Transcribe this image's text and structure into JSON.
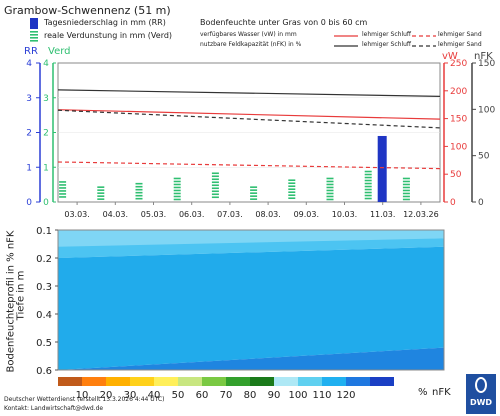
{
  "title": "Grambow-Schwennenz  (51 m)",
  "legend": {
    "precip": "Tagesniederschlag in mm (RR)",
    "evap": "reale Verdunstung in mm (Verd)",
    "soil_title": "Bodenfeuchte unter Gras von 0 bis 60 cm",
    "vw_label": "verfügbares Wasser (vW) in mm",
    "nfk_label": "nutzbare Feldkapazität (nFK) in %",
    "schluff": "lehmiger Schluff",
    "sand": "lehmiger Sand"
  },
  "axes": {
    "rr": "RR",
    "verd": "Verd",
    "vw": "vW",
    "nfk": "nFK",
    "left_ticks": [
      "0",
      "1",
      "2",
      "3",
      "4"
    ],
    "vw_ticks": [
      "0",
      "50",
      "100",
      "150",
      "200",
      "250"
    ],
    "nfk_ticks": [
      "0",
      "50",
      "100",
      "150"
    ],
    "depth_ticks": [
      "0.1",
      "0.2",
      "0.3",
      "0.4",
      "0.5",
      "0.6"
    ],
    "profile_ylabel_1": "Bodenfeuchteprofil in % nFK",
    "profile_ylabel_2": "Tiefe in m"
  },
  "colors": {
    "precip": "#1f35c4",
    "evap": "#2fbf71",
    "vw_line": "#e83b3b",
    "nfk_line": "#333333",
    "rr_axis": "#2b3fd6",
    "verd_axis": "#2fbf71",
    "vw_axis": "#e83b3b",
    "nfk_axis": "#444444"
  },
  "scale": {
    "labels": [
      "10",
      "20",
      "30",
      "40",
      "50",
      "60",
      "70",
      "80",
      "90",
      "100",
      "110",
      "120"
    ],
    "unit": "%",
    "nfk": "nFK",
    "colors": [
      "#c05a1a",
      "#ff7f0e",
      "#ffb000",
      "#ffd11a",
      "#ffef5a",
      "#c8e680",
      "#7ac943",
      "#33a02c",
      "#1a7a1a",
      "#aee8f5",
      "#5fd0f0",
      "#20b0f0",
      "#1f78e0",
      "#1a3fc4"
    ]
  },
  "footer": {
    "line1": "Deutscher Wetterdienst (erstellt 13.3.2026 4:44 UTC)",
    "line2": "Kontakt: Landwirtschaft@dwd.de"
  },
  "logo": "DWD",
  "chart_data": [
    {
      "type": "bar",
      "categories": [
        "03.03.",
        "04.03.",
        "05.03.",
        "06.03.",
        "07.03.",
        "08.03.",
        "09.03.",
        "10.03.",
        "11.03.",
        "12.03.26"
      ],
      "series": [
        {
          "name": "Tagesniederschlag in mm (RR)",
          "values": [
            0,
            0,
            0,
            0,
            0,
            0,
            0,
            0,
            1.9,
            0
          ]
        },
        {
          "name": "reale Verdunstung in mm (Verd)",
          "values": [
            0.6,
            0.45,
            0.55,
            0.7,
            0.85,
            0.45,
            0.65,
            0.7,
            0.9,
            0.7
          ]
        }
      ],
      "lines": [
        {
          "name": "vW lehmiger Schluff",
          "axis": "vW",
          "x": [
            0,
            10
          ],
          "values": [
            166,
            149
          ]
        },
        {
          "name": "vW lehmiger Sand",
          "axis": "vW",
          "x": [
            0,
            10
          ],
          "values": [
            72,
            60
          ]
        },
        {
          "name": "nFK lehmiger Schluff",
          "axis": "nFK",
          "x": [
            0,
            10
          ],
          "values": [
            121,
            114
          ]
        },
        {
          "name": "nFK lehmiger Sand",
          "axis": "nFK",
          "x": [
            0,
            10
          ],
          "values": [
            99,
            80
          ]
        }
      ],
      "ylim_left": [
        0,
        4
      ],
      "ylim_vw": [
        0,
        250
      ],
      "ylim_nfk": [
        0,
        150
      ]
    },
    {
      "type": "area",
      "x": [
        "03.03.",
        "12.03.26"
      ],
      "ylim": [
        0.1,
        0.6
      ],
      "bands": [
        {
          "name": "100 bis 110",
          "depth_start": [
            0.1,
            0.1
          ],
          "depth_end": [
            0.2,
            0.13
          ]
        },
        {
          "name": "110 bis 120 obere Zone",
          "depth_start": [
            0.16,
            0.13
          ],
          "depth_end": [
            0.2,
            0.16
          ]
        },
        {
          "name": "110 bis 120",
          "depth_start": [
            0.2,
            0.16
          ],
          "depth_end": [
            0.6,
            0.52
          ]
        },
        {
          "name": "100 bis 110 untere Zone",
          "depth_start": [
            0.6,
            0.52
          ],
          "depth_end": [
            0.6,
            0.6
          ]
        }
      ]
    }
  ]
}
